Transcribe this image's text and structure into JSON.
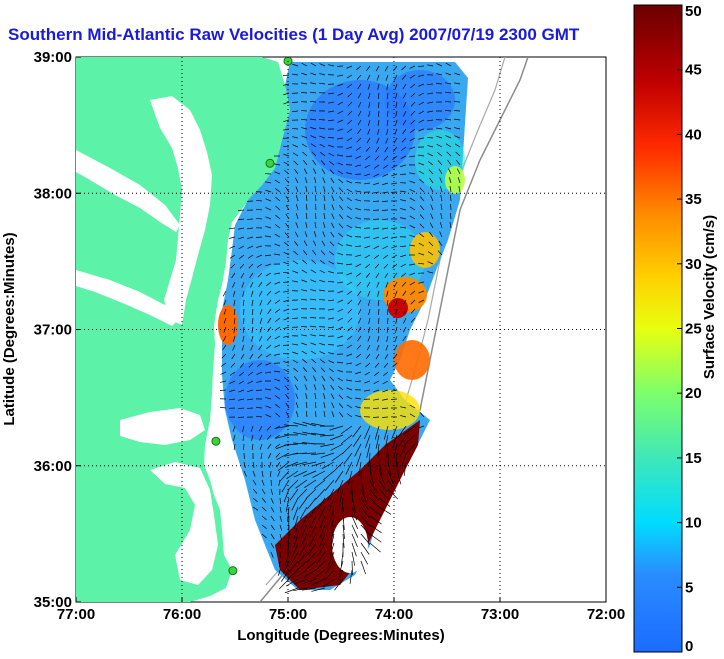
{
  "chart_data": {
    "type": "heatmap",
    "title": "Southern Mid-Atlantic Raw Velocities (1 Day Avg) 2007/07/19 2300 GMT",
    "xlabel": "Longitude (Degrees:Minutes)",
    "ylabel": "Latitude (Degrees:Minutes)",
    "xlim": [
      -77,
      -72
    ],
    "ylim": [
      35,
      39
    ],
    "x_ticks": [
      {
        "value": -77,
        "label": "77:00"
      },
      {
        "value": -76,
        "label": "76:00"
      },
      {
        "value": -75,
        "label": "75:00"
      },
      {
        "value": -74,
        "label": "74:00"
      },
      {
        "value": -73,
        "label": "73:00"
      },
      {
        "value": -72,
        "label": "72:00"
      }
    ],
    "y_ticks": [
      {
        "value": 35,
        "label": "35:00"
      },
      {
        "value": 36,
        "label": "36:00"
      },
      {
        "value": 37,
        "label": "37:00"
      },
      {
        "value": 38,
        "label": "38:00"
      },
      {
        "value": 39,
        "label": "39:00"
      }
    ],
    "grid": true,
    "colorbar": {
      "label": "Surface Velocity (cm/s)",
      "min": 0,
      "max": 50,
      "ticks": [
        0,
        5,
        10,
        15,
        20,
        25,
        30,
        35,
        40,
        45,
        50
      ]
    },
    "stations": [
      {
        "lon": -75.0,
        "lat": 38.97
      },
      {
        "lon": -75.17,
        "lat": 38.22
      },
      {
        "lon": -75.68,
        "lat": 36.18
      },
      {
        "lon": -75.52,
        "lat": 35.23
      }
    ]
  }
}
